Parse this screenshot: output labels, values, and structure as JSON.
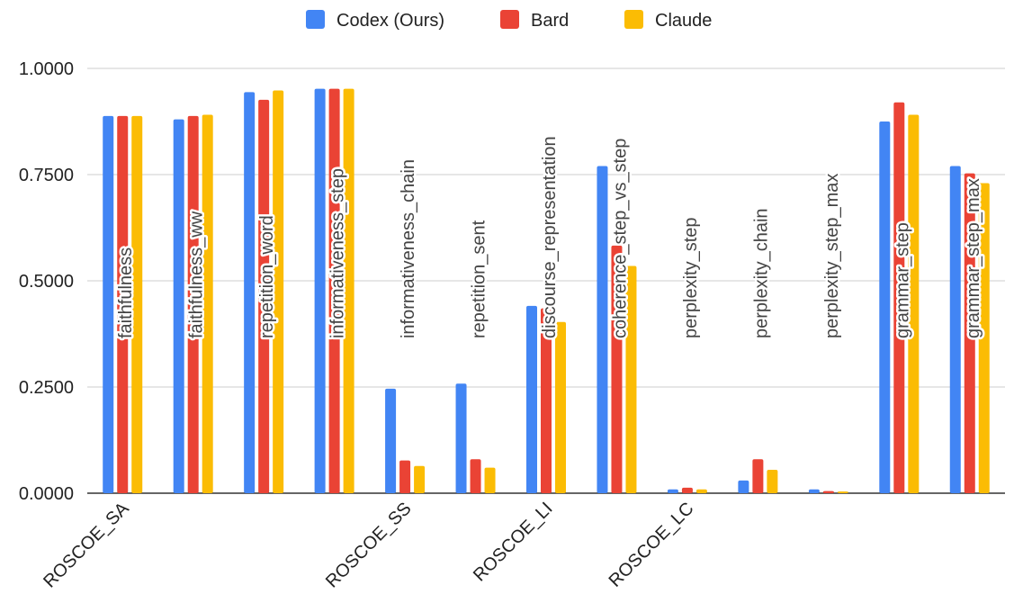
{
  "chart_data": {
    "type": "bar",
    "categories": [
      "faithfulness",
      "faithfulness_ww",
      "repetition_word",
      "informativeness_step",
      "informativeness_chain",
      "repetition_sent",
      "discourse_representation",
      "coherence_step_vs_step",
      "perplexity_step",
      "perplexity_chain",
      "perplexity_step_max",
      "grammar_step",
      "grammar_step_max"
    ],
    "x_axis_labels": [
      "ROSCOE_SA",
      "",
      "",
      "",
      "ROSCOE_SS",
      "",
      "ROSCOE_LI",
      "",
      "ROSCOE_LC",
      "",
      "",
      "",
      ""
    ],
    "series": [
      {
        "name": "Codex (Ours)",
        "color": "#4285F4",
        "values": [
          0.888,
          0.88,
          0.944,
          0.952,
          0.246,
          0.258,
          0.441,
          0.77,
          0.009,
          0.03,
          0.009,
          0.875,
          0.77
        ]
      },
      {
        "name": "Bard",
        "color": "#EA4335",
        "values": [
          0.888,
          0.888,
          0.926,
          0.952,
          0.077,
          0.08,
          0.435,
          0.583,
          0.013,
          0.08,
          0.005,
          0.92,
          0.753
        ]
      },
      {
        "name": "Claude",
        "color": "#FBBC04",
        "values": [
          0.888,
          0.891,
          0.948,
          0.952,
          0.064,
          0.06,
          0.403,
          0.535,
          0.009,
          0.055,
          0.004,
          0.891,
          0.73
        ]
      }
    ],
    "yticks": [
      "0.0000",
      "0.2500",
      "0.5000",
      "0.7500",
      "1.0000"
    ],
    "ylim": [
      0,
      1
    ],
    "grid": true,
    "legend_position": "top-center",
    "xlabel": "",
    "ylabel": ""
  }
}
